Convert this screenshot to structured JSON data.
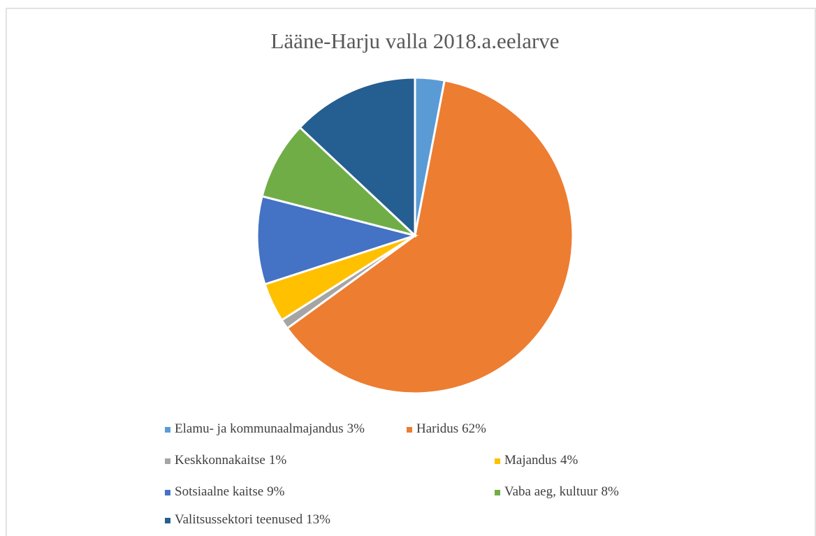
{
  "chart_data": {
    "type": "pie",
    "title": "Lääne-Harju  valla 2018.a.eelarve",
    "categories": [
      "Elamu- ja kommunaalmajandus",
      "Haridus",
      "Keskkonnakaitse",
      "Majandus",
      "Sotsiaalne kaitse",
      "Vaba aeg, kultuur",
      "Valitsussektori teenused"
    ],
    "values": [
      3,
      62,
      1,
      4,
      9,
      8,
      13
    ],
    "value_labels": [
      "3%",
      "62%",
      "1%",
      "4%",
      "9%",
      "8%",
      "13%"
    ],
    "colors": [
      "#5b9bd5",
      "#ed7d31",
      "#a5a5a5",
      "#ffc000",
      "#4472c4",
      "#70ad47",
      "#255e91"
    ]
  }
}
